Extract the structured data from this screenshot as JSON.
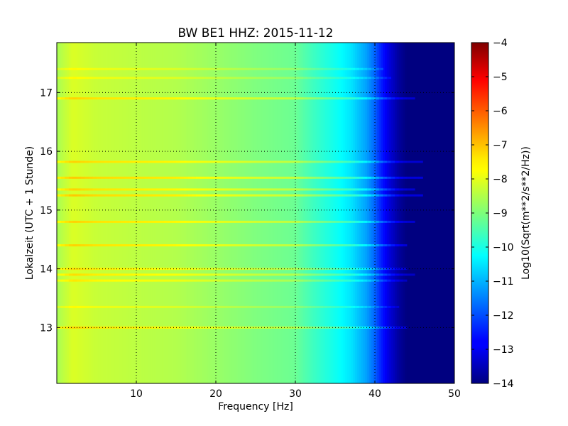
{
  "chart_data": {
    "type": "heatmap",
    "title": "BW BE1 HHZ: 2015-11-12",
    "xlabel": "Frequency [Hz]",
    "ylabel": "Lokalzeit (UTC + 1 Stunde)",
    "colorbar_label": "Log10(Sqrt(m**2/s**2/Hz))",
    "colormap": "jet",
    "grid": true,
    "xlim": [
      0,
      50
    ],
    "ylim": [
      17.85,
      12.05
    ],
    "x_ticks": [
      "10",
      "20",
      "30",
      "40",
      "50"
    ],
    "y_ticks": [
      "13",
      "14",
      "15",
      "16",
      "17"
    ],
    "color_range": [
      -14,
      -4
    ],
    "colorbar_ticks": [
      "-4",
      "-5",
      "-6",
      "-7",
      "-8",
      "-9",
      "-10",
      "-11",
      "-12",
      "-13",
      "-14"
    ],
    "spectrum_profile": [
      {
        "f": 0,
        "v": -8.6
      },
      {
        "f": 2,
        "v": -8.1
      },
      {
        "f": 5,
        "v": -8.3
      },
      {
        "f": 10,
        "v": -8.4
      },
      {
        "f": 15,
        "v": -8.5
      },
      {
        "f": 20,
        "v": -8.75
      },
      {
        "f": 25,
        "v": -9.0
      },
      {
        "f": 30,
        "v": -9.2
      },
      {
        "f": 32,
        "v": -9.6
      },
      {
        "f": 35,
        "v": -10.1
      },
      {
        "f": 37,
        "v": -10.5
      },
      {
        "f": 39,
        "v": -11.2
      },
      {
        "f": 40,
        "v": -11.8
      },
      {
        "f": 41,
        "v": -12.6
      },
      {
        "f": 42,
        "v": -13.2
      },
      {
        "f": 43,
        "v": -13.7
      },
      {
        "f": 44,
        "v": -14.0
      },
      {
        "f": 50,
        "v": -14.0
      }
    ],
    "horizontal_bands": [
      {
        "t": 13.0,
        "f_end": 44,
        "delta": 0.8
      },
      {
        "t": 13.35,
        "f_end": 43,
        "delta": 0.4
      },
      {
        "t": 13.8,
        "f_end": 44,
        "delta": 0.6
      },
      {
        "t": 13.9,
        "f_end": 45,
        "delta": 0.7
      },
      {
        "t": 14.0,
        "f_end": 44,
        "delta": 0.7
      },
      {
        "t": 14.4,
        "f_end": 44,
        "delta": 0.8
      },
      {
        "t": 14.8,
        "f_end": 45,
        "delta": 0.8
      },
      {
        "t": 15.25,
        "f_end": 46,
        "delta": 0.9
      },
      {
        "t": 15.35,
        "f_end": 45,
        "delta": 0.8
      },
      {
        "t": 15.55,
        "f_end": 46,
        "delta": 0.9
      },
      {
        "t": 15.82,
        "f_end": 46,
        "delta": 0.8
      },
      {
        "t": 16.9,
        "f_end": 45,
        "delta": 0.8
      },
      {
        "t": 17.25,
        "f_end": 42,
        "delta": 0.4
      },
      {
        "t": 17.4,
        "f_end": 41,
        "delta": 0.4
      }
    ]
  }
}
